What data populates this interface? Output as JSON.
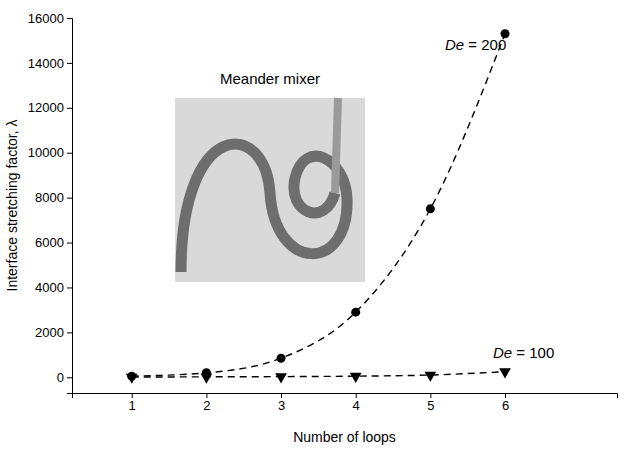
{
  "chart_data": {
    "type": "line",
    "x_label": "Number of loops",
    "y_label": "Interface stretching factor, λ",
    "annotations": [
      "Meander mixer"
    ],
    "x": [
      1,
      2,
      3,
      4,
      5,
      6
    ],
    "series": [
      {
        "name": "De = 200",
        "color": "#000000",
        "marker": "circle",
        "line_style": "dashed",
        "values": [
          50,
          200,
          850,
          2900,
          7500,
          15300
        ]
      },
      {
        "name": "De = 100",
        "color": "#000000",
        "marker": "triangle-down",
        "line_style": "dashed",
        "values": [
          10,
          20,
          30,
          50,
          100,
          250
        ]
      }
    ],
    "xlim": [
      0.2,
      7.5
    ],
    "xticks": [
      1,
      2,
      3,
      4,
      5,
      6
    ],
    "ylim": [
      -700,
      16000
    ],
    "yticks": [
      0,
      2000,
      4000,
      6000,
      8000,
      10000,
      12000,
      14000,
      16000
    ],
    "grid": false
  }
}
